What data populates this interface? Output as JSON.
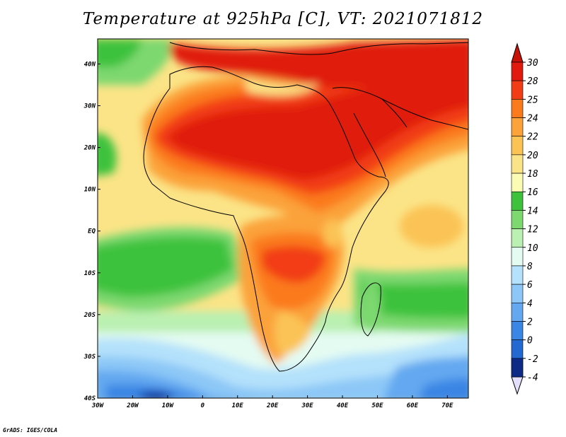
{
  "title": "Temperature at 925hPa [C], VT: 2021071812",
  "credit": "GrADS: IGES/COLA",
  "map": {
    "lon_range": [
      -30,
      76
    ],
    "lat_range": [
      -40,
      46
    ],
    "lat_ticks": [
      {
        "value": 40,
        "label": "40N"
      },
      {
        "value": 30,
        "label": "30N"
      },
      {
        "value": 20,
        "label": "20N"
      },
      {
        "value": 10,
        "label": "10N"
      },
      {
        "value": 0,
        "label": "EQ"
      },
      {
        "value": -10,
        "label": "10S"
      },
      {
        "value": -20,
        "label": "20S"
      },
      {
        "value": -30,
        "label": "30S"
      },
      {
        "value": -40,
        "label": "40S"
      }
    ],
    "lon_ticks": [
      {
        "value": -30,
        "label": "30W"
      },
      {
        "value": -20,
        "label": "20W"
      },
      {
        "value": -10,
        "label": "10W"
      },
      {
        "value": 0,
        "label": "0"
      },
      {
        "value": 10,
        "label": "10E"
      },
      {
        "value": 20,
        "label": "20E"
      },
      {
        "value": 30,
        "label": "30E"
      },
      {
        "value": 40,
        "label": "40E"
      },
      {
        "value": 50,
        "label": "50E"
      },
      {
        "value": 60,
        "label": "60E"
      },
      {
        "value": 70,
        "label": "70E"
      }
    ]
  },
  "colorbar": {
    "levels": [
      {
        "label": "30",
        "color": "#e01a0f"
      },
      {
        "label": "28",
        "color": "#f23c16"
      },
      {
        "label": "25",
        "color": "#fb7a1c"
      },
      {
        "label": "24",
        "color": "#fba23a"
      },
      {
        "label": "22",
        "color": "#fbc354"
      },
      {
        "label": "20",
        "color": "#fbe487"
      },
      {
        "label": "18",
        "color": "#fbfbb4"
      },
      {
        "label": "16",
        "color": "#3ec23c"
      },
      {
        "label": "14",
        "color": "#7dd870"
      },
      {
        "label": "12",
        "color": "#baf0b1"
      },
      {
        "label": "10",
        "color": "#e4fbf2"
      },
      {
        "label": "8",
        "color": "#b4e1fb"
      },
      {
        "label": "6",
        "color": "#8cc7f7"
      },
      {
        "label": "4",
        "color": "#63a8f0"
      },
      {
        "label": "2",
        "color": "#3a86e4"
      },
      {
        "label": "0",
        "color": "#2468d2"
      },
      {
        "label": "-2",
        "color": "#164cb4"
      },
      {
        "label": "-4",
        "color": "#0c2a86"
      }
    ],
    "top_color": "#c81208",
    "bottom_color": "#e4e0fb"
  }
}
